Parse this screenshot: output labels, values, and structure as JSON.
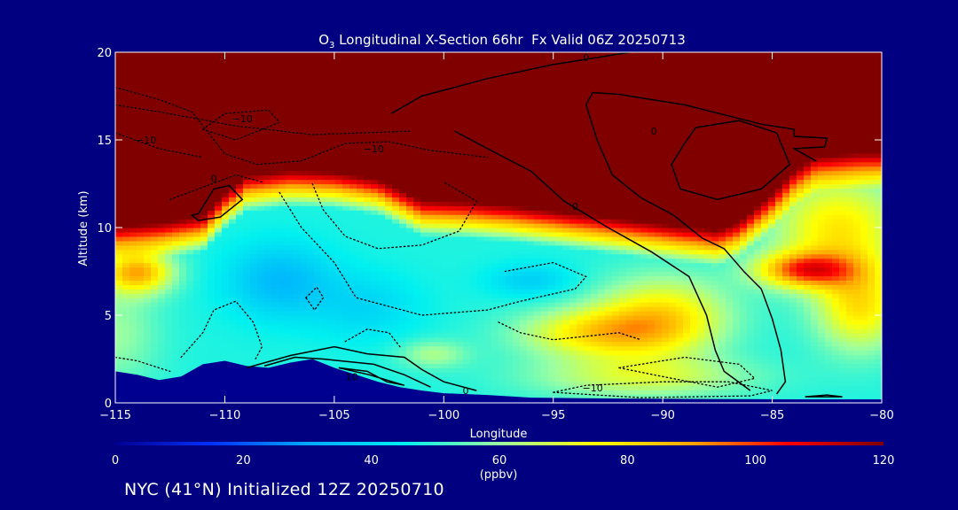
{
  "chart_data": {
    "type": "heatmap",
    "title": "O₃ Longitudinal X-Section 66hr  Fx Valid 06Z 20250713",
    "title_main": "O",
    "title_sub": "3",
    "title_rest": " Longitudinal X-Section 66hr  Fx Valid 06Z 20250713",
    "xlabel": "Longitude",
    "ylabel": "Altitude (km)",
    "xlim": [
      -115,
      -80
    ],
    "ylim": [
      0,
      20
    ],
    "x_ticks": [
      -115,
      -110,
      -105,
      -100,
      -95,
      -90,
      -85,
      -80
    ],
    "x_tick_labels": [
      "−115",
      "−110",
      "−105",
      "−100",
      "−95",
      "−90",
      "−85",
      "−80"
    ],
    "y_ticks": [
      0,
      5,
      10,
      15,
      20
    ],
    "y_tick_labels": [
      "0",
      "5",
      "10",
      "15",
      "20"
    ],
    "colorbar": {
      "min": 0,
      "max": 120,
      "ticks": [
        0,
        20,
        40,
        60,
        80,
        100,
        120
      ],
      "tick_labels": [
        "0",
        "20",
        "40",
        "60",
        "80",
        "100",
        "120"
      ],
      "unit": "(ppbv)",
      "colors": [
        "#000090",
        "#0030ff",
        "#00a8ff",
        "#00f0f0",
        "#9cffa0",
        "#ffff00",
        "#ffa500",
        "#ff0000",
        "#800000"
      ]
    },
    "ozone_field": {
      "description_units": "ppbv",
      "stratosphere_value": 125,
      "tropopause_km": [
        [
          -115,
          9.6
        ],
        [
          -113,
          9.8
        ],
        [
          -111,
          10.2
        ],
        [
          -110,
          11.5
        ],
        [
          -109,
          12.5
        ],
        [
          -107,
          12.8
        ],
        [
          -105,
          12.7
        ],
        [
          -103,
          12.3
        ],
        [
          -101,
          11.1
        ],
        [
          -99,
          11.0
        ],
        [
          -97,
          10.8
        ],
        [
          -95,
          10.5
        ],
        [
          -93,
          10.2
        ],
        [
          -91,
          9.9
        ],
        [
          -89,
          9.6
        ],
        [
          -87.5,
          9.4
        ],
        [
          -86.5,
          9.9
        ],
        [
          -85,
          11.5
        ],
        [
          -84,
          12.8
        ],
        [
          -83,
          13.6
        ],
        [
          -81,
          13.8
        ],
        [
          -80,
          13.8
        ]
      ],
      "terrain_km": [
        [
          -115,
          1.8
        ],
        [
          -114,
          1.6
        ],
        [
          -113,
          1.3
        ],
        [
          -112,
          1.5
        ],
        [
          -111,
          2.2
        ],
        [
          -110,
          2.4
        ],
        [
          -109,
          2.1
        ],
        [
          -108,
          2.0
        ],
        [
          -107,
          2.3
        ],
        [
          -106,
          2.5
        ],
        [
          -105,
          2.0
        ],
        [
          -104,
          1.6
        ],
        [
          -103,
          1.2
        ],
        [
          -102,
          0.9
        ],
        [
          -101,
          0.7
        ],
        [
          -100,
          0.55
        ],
        [
          -98,
          0.45
        ],
        [
          -96,
          0.3
        ],
        [
          -92,
          0.25
        ],
        [
          -88,
          0.22
        ],
        [
          -84,
          0.2
        ],
        [
          -80,
          0.2
        ]
      ],
      "tropo_background": 48,
      "blobs": [
        {
          "lon": -107.5,
          "alt": 7.0,
          "rlon": 2.5,
          "ralt": 2.2,
          "value": -14
        },
        {
          "lon": -103.5,
          "alt": 5.5,
          "rlon": 2.5,
          "ralt": 2.0,
          "value": -8
        },
        {
          "lon": -100.5,
          "alt": 2.8,
          "rlon": 1.6,
          "ralt": 0.8,
          "value": 14
        },
        {
          "lon": -93,
          "alt": 4.0,
          "rlon": 3.5,
          "ralt": 1.4,
          "value": 30
        },
        {
          "lon": -90,
          "alt": 5.0,
          "rlon": 3.0,
          "ralt": 2.2,
          "value": 30
        },
        {
          "lon": -91,
          "alt": 1.5,
          "rlon": 5.0,
          "ralt": 1.2,
          "value": 20
        },
        {
          "lon": -83.5,
          "alt": 7.6,
          "rlon": 2.2,
          "ralt": 1.0,
          "value": 45
        },
        {
          "lon": -82,
          "alt": 10.0,
          "rlon": 3.0,
          "ralt": 3.0,
          "value": 30
        },
        {
          "lon": -114,
          "alt": 7.5,
          "rlon": 1.6,
          "ralt": 1.2,
          "value": 40
        },
        {
          "lon": -81,
          "alt": 5.5,
          "rlon": 2.0,
          "ralt": 2.5,
          "value": 30
        },
        {
          "lon": -115,
          "alt": 4.0,
          "rlon": 2.0,
          "ralt": 3.0,
          "value": 12
        },
        {
          "lon": -96,
          "alt": 7.0,
          "rlon": 2.0,
          "ralt": 1.0,
          "value": -10
        }
      ]
    },
    "contours": [
      {
        "style": "solid",
        "label": "0",
        "label_at": [
          -93.5,
          19.7
        ],
        "points": [
          [
            -102.4,
            16.5
          ],
          [
            -101,
            17.5
          ],
          [
            -98,
            18.5
          ],
          [
            -95,
            19.3
          ],
          [
            -91.5,
            20
          ],
          null,
          [
            -99.5,
            15.5
          ],
          [
            -98,
            14.5
          ],
          [
            -96,
            13.2
          ],
          [
            -94.5,
            11.5
          ],
          [
            -92.5,
            10.0
          ],
          [
            -90.5,
            8.6
          ],
          [
            -88.8,
            7.2
          ],
          [
            -88,
            5.0
          ],
          [
            -87.6,
            3.0
          ],
          [
            -87.2,
            1.8
          ],
          [
            -86,
            0.7
          ]
        ]
      },
      {
        "style": "solid",
        "label": "0",
        "label_at": [
          -94,
          11.2
        ],
        "points": [
          [
            -93.5,
            17.0
          ],
          [
            -93,
            15.0
          ],
          [
            -92.3,
            13.0
          ],
          [
            -91,
            11.7
          ],
          [
            -89.5,
            10.7
          ],
          [
            -88.2,
            9.4
          ],
          [
            -87.2,
            8.8
          ],
          [
            -86.3,
            7.5
          ],
          [
            -85.5,
            6.5
          ],
          [
            -85,
            4.8
          ],
          [
            -84.6,
            3.0
          ],
          [
            -84.4,
            1.2
          ],
          [
            -84.8,
            0.5
          ],
          null,
          [
            -93.5,
            17.0
          ],
          [
            -93.2,
            17.7
          ],
          [
            -92.0,
            17.6
          ],
          [
            -89.0,
            17.0
          ],
          [
            -85.5,
            15.9
          ],
          [
            -84,
            15.6
          ],
          [
            -84,
            15.2
          ],
          [
            -82.5,
            15.1
          ],
          [
            -82.6,
            14.6
          ],
          [
            -84,
            14.5
          ],
          [
            -83,
            13.8
          ]
        ]
      },
      {
        "style": "solid",
        "label": "0",
        "label_at": [
          -90.4,
          15.5
        ],
        "points": [
          [
            -89,
            14.8
          ],
          [
            -88.5,
            15.7
          ],
          [
            -86.5,
            16.1
          ],
          [
            -84.8,
            15.4
          ],
          [
            -84.2,
            13.6
          ],
          [
            -85.5,
            12.2
          ],
          [
            -87.5,
            11.6
          ],
          [
            -89.2,
            12.2
          ],
          [
            -89.6,
            13.6
          ],
          [
            -89,
            14.8
          ]
        ]
      },
      {
        "style": "solid",
        "label": "",
        "points": [
          [
            -111.2,
            10.8
          ],
          [
            -110.5,
            12.2
          ],
          [
            -109.8,
            12.4
          ],
          [
            -109.2,
            11.6
          ],
          [
            -110.2,
            10.6
          ],
          [
            -111.2,
            10.4
          ],
          [
            -111.5,
            10.7
          ],
          [
            -111.2,
            10.8
          ]
        ]
      },
      {
        "style": "solid",
        "label": "0",
        "label_at": [
          -99,
          0.7
        ],
        "points": [
          [
            -109,
            2.0
          ],
          [
            -107,
            2.7
          ],
          [
            -105,
            3.2
          ],
          [
            -103.5,
            2.8
          ],
          [
            -101.8,
            2.6
          ],
          [
            -101,
            1.9
          ],
          [
            -100,
            1.2
          ],
          [
            -98.5,
            0.7
          ],
          null,
          [
            -108.2,
            2.1
          ],
          [
            -106.8,
            2.6
          ],
          [
            -105.5,
            2.5
          ],
          [
            -103.2,
            2.2
          ],
          [
            -101.8,
            1.6
          ],
          [
            -100.6,
            0.9
          ]
        ]
      },
      {
        "style": "solid",
        "label": "10",
        "label_at": [
          -104.2,
          1.5
        ],
        "points": [
          [
            -104.8,
            2.0
          ],
          [
            -103.5,
            1.8
          ],
          [
            -102.6,
            1.2
          ],
          [
            -101.8,
            1.0
          ],
          [
            -103.4,
            1.6
          ],
          [
            -104.8,
            2.0
          ]
        ]
      },
      {
        "style": "solid",
        "label": "",
        "points": [
          [
            -83.5,
            0.35
          ],
          [
            -82.5,
            0.45
          ],
          [
            -81.8,
            0.35
          ],
          [
            -83.5,
            0.35
          ]
        ]
      },
      {
        "style": "dotted",
        "label": "−10",
        "label_at": [
          -109.2,
          16.2
        ],
        "points": [
          [
            -111,
            15.6
          ],
          [
            -110,
            16.5
          ],
          [
            -108,
            16.7
          ],
          [
            -107.5,
            16.0
          ],
          [
            -109.5,
            15.0
          ],
          [
            -111,
            15.6
          ]
        ]
      },
      {
        "style": "dotted",
        "label": "−10",
        "label_at": [
          -113.6,
          15.0
        ],
        "points": [
          [
            -115,
            18.0
          ],
          [
            -113,
            17.3
          ],
          [
            -111.5,
            16.6
          ],
          [
            -110,
            14.2
          ],
          [
            -108.5,
            13.6
          ],
          [
            -106.5,
            13.8
          ],
          [
            -104.5,
            14.8
          ],
          [
            -102.5,
            14.9
          ],
          [
            -100.6,
            14.4
          ],
          [
            -98,
            14.0
          ]
        ]
      },
      {
        "style": "dotted",
        "label": "−10",
        "label_at": [
          -103.2,
          14.5
        ],
        "points": [
          [
            -115,
            17.0
          ],
          [
            -113,
            16.6
          ],
          [
            -109.5,
            15.8
          ],
          [
            -106,
            15.3
          ],
          [
            -101.5,
            15.5
          ]
        ]
      },
      {
        "style": "dotted",
        "label": "0",
        "label_at": [
          -110.5,
          12.8
        ],
        "points": [
          [
            -112.5,
            11.6
          ],
          [
            -111,
            12.3
          ],
          [
            -109.5,
            13.0
          ],
          [
            -108.3,
            12.6
          ]
        ]
      },
      {
        "style": "dotted",
        "label": "",
        "points": [
          [
            -106,
            12.5
          ],
          [
            -105.5,
            11.0
          ],
          [
            -104.5,
            9.5
          ],
          [
            -103,
            8.8
          ],
          [
            -101,
            9.0
          ],
          [
            -99.3,
            9.8
          ],
          [
            -98.5,
            11.5
          ],
          [
            -100,
            12.6
          ]
        ]
      },
      {
        "style": "dotted",
        "label": "",
        "points": [
          [
            -107.5,
            12.0
          ],
          [
            -106.5,
            10.0
          ],
          [
            -105,
            8.0
          ],
          [
            -104,
            6.0
          ],
          [
            -101,
            5.0
          ],
          [
            -98,
            5.3
          ],
          [
            -96.5,
            5.8
          ],
          [
            -94,
            6.5
          ],
          [
            -93.5,
            7.2
          ],
          [
            -95,
            8.0
          ],
          [
            -97.2,
            7.5
          ]
        ]
      },
      {
        "style": "dotted",
        "label": "",
        "points": [
          [
            -112,
            2.6
          ],
          [
            -111,
            4.0
          ],
          [
            -110.5,
            5.3
          ],
          [
            -109.5,
            5.8
          ],
          [
            -108.7,
            4.6
          ],
          [
            -108.3,
            3.2
          ],
          [
            -108.6,
            2.5
          ]
        ]
      },
      {
        "style": "dotted",
        "label": "",
        "points": [
          [
            -106.3,
            6.0
          ],
          [
            -105.8,
            6.6
          ],
          [
            -105.5,
            6.0
          ],
          [
            -105.9,
            5.3
          ],
          [
            -106.3,
            6.0
          ]
        ]
      },
      {
        "style": "dotted",
        "label": "",
        "points": [
          [
            -115,
            2.6
          ],
          [
            -114,
            2.4
          ],
          [
            -112.5,
            1.8
          ]
        ]
      },
      {
        "style": "dotted",
        "label": "",
        "points": [
          [
            -97.5,
            4.6
          ],
          [
            -96.5,
            4.0
          ],
          [
            -95,
            3.6
          ],
          [
            -93.5,
            3.8
          ],
          [
            -92,
            4.0
          ],
          [
            -91,
            3.6
          ]
        ]
      },
      {
        "style": "dotted",
        "label": "−10",
        "label_at": [
          -93.2,
          0.85
        ],
        "points": [
          [
            -95,
            0.6
          ],
          [
            -93.5,
            1.0
          ],
          [
            -90,
            1.2
          ],
          [
            -87,
            1.2
          ],
          [
            -85,
            0.7
          ],
          [
            -86,
            0.4
          ],
          [
            -91,
            0.3
          ],
          [
            -95,
            0.6
          ]
        ]
      },
      {
        "style": "dotted",
        "label": "",
        "points": [
          [
            -92,
            2.0
          ],
          [
            -89,
            2.6
          ],
          [
            -86.5,
            2.2
          ],
          [
            -85.8,
            1.4
          ],
          [
            -87.5,
            0.9
          ],
          [
            -90,
            1.5
          ],
          [
            -92,
            2.0
          ]
        ]
      },
      {
        "style": "dotted",
        "label": "",
        "points": [
          [
            -104.5,
            3.5
          ],
          [
            -103.5,
            4.2
          ],
          [
            -102.5,
            4.0
          ],
          [
            -102,
            3.2
          ]
        ]
      },
      {
        "style": "dotted",
        "label": "",
        "points": [
          [
            -115,
            15.4
          ],
          [
            -113,
            14.5
          ],
          [
            -111,
            14.0
          ]
        ]
      }
    ]
  },
  "footer": {
    "caption": "NYC (41°N) Initialized 12Z 20250710"
  }
}
